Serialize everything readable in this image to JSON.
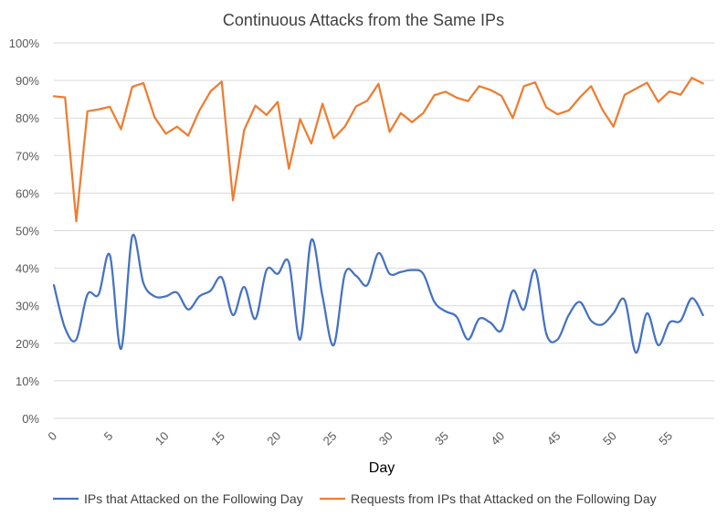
{
  "chart_data": {
    "type": "line",
    "title": "Continuous Attacks from the Same IPs",
    "xlabel": "Day",
    "ylabel": "",
    "xlim": [
      0,
      59
    ],
    "ylim": [
      0,
      100
    ],
    "grid": true,
    "legend_position": "bottom",
    "x_ticks": [
      0,
      5,
      10,
      15,
      20,
      25,
      30,
      35,
      40,
      45,
      50,
      55
    ],
    "y_ticks": [
      0,
      10,
      20,
      30,
      40,
      50,
      60,
      70,
      80,
      90,
      100
    ],
    "y_tick_labels": [
      "0%",
      "10%",
      "20%",
      "30%",
      "40%",
      "50%",
      "60%",
      "70%",
      "80%",
      "90%",
      "100%"
    ],
    "series": [
      {
        "name": "IPs that Attacked on the Following Day",
        "color": "#4472c4",
        "smooth": true,
        "x": [
          0,
          1,
          2,
          3,
          4,
          5,
          6,
          7,
          8,
          9,
          10,
          11,
          12,
          13,
          14,
          15,
          16,
          17,
          18,
          19,
          20,
          21,
          22,
          23,
          24,
          25,
          26,
          27,
          28,
          29,
          30,
          31,
          32,
          33,
          34,
          35,
          36,
          37,
          38,
          39,
          40,
          41,
          42,
          43,
          44,
          45,
          46,
          47,
          48,
          49,
          50,
          51,
          52,
          53,
          54,
          55,
          56,
          57,
          58
        ],
        "values": [
          35.5,
          24,
          21,
          33,
          33,
          43.5,
          18.5,
          48.5,
          36,
          32.5,
          32.5,
          33.5,
          29,
          32.5,
          34,
          37.5,
          27.5,
          35,
          26.5,
          39.5,
          38.5,
          41.5,
          21,
          47.5,
          32.5,
          19.5,
          38.5,
          38,
          35.5,
          44,
          38.5,
          39,
          39.5,
          38.5,
          31,
          28.5,
          27,
          21,
          26.5,
          25.5,
          23.5,
          34,
          29,
          39.5,
          22.5,
          21,
          27.5,
          31,
          26,
          25,
          28,
          31.5,
          17.5,
          28,
          19.5,
          25.5,
          26,
          32,
          27.5
        ]
      },
      {
        "name": "Requests from IPs that Attacked on the Following Day",
        "color": "#ed7d31",
        "smooth": false,
        "x": [
          0,
          1,
          2,
          3,
          4,
          5,
          6,
          7,
          8,
          9,
          10,
          11,
          12,
          13,
          14,
          15,
          16,
          17,
          18,
          19,
          20,
          21,
          22,
          23,
          24,
          25,
          26,
          27,
          28,
          29,
          30,
          31,
          32,
          33,
          34,
          35,
          36,
          37,
          38,
          39,
          40,
          41,
          42,
          43,
          44,
          45,
          46,
          47,
          48,
          49,
          50,
          51,
          52,
          53,
          54,
          55,
          56,
          57,
          58
        ],
        "values": [
          85.8,
          85.5,
          52.5,
          81.8,
          82.3,
          83,
          77,
          88.3,
          89.3,
          80.2,
          75.8,
          77.7,
          75.3,
          82,
          87.1,
          89.7,
          58.1,
          76.8,
          83.3,
          80.8,
          84.3,
          66.5,
          79.7,
          73.2,
          83.8,
          74.6,
          77.7,
          83.1,
          84.6,
          89.1,
          76.3,
          81.3,
          78.9,
          81.3,
          86.1,
          87,
          85.4,
          84.5,
          88.5,
          87.5,
          85.9,
          80,
          88.5,
          89.5,
          82.8,
          81,
          82,
          85.5,
          88.5,
          82.3,
          77.7,
          86.2,
          87.8,
          89.4,
          84.3,
          87.1,
          86.2,
          90.7,
          89.2
        ]
      }
    ]
  }
}
